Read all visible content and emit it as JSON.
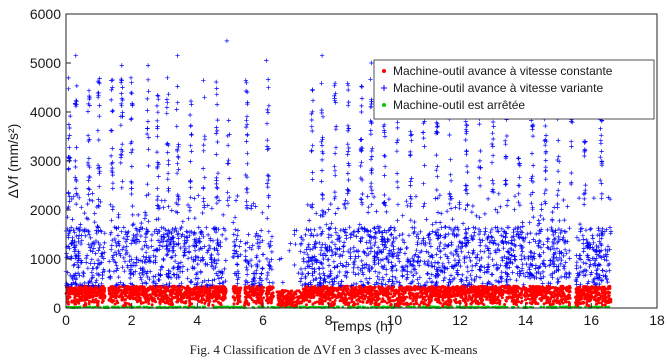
{
  "figure": {
    "caption": "Fig. 4 Classification de ΔVf en 3 classes avec K-means"
  },
  "chart_data": {
    "type": "scatter",
    "xlabel": "Temps (h)",
    "ylabel": "ΔVf (mm/s²)",
    "xlim": [
      0,
      18
    ],
    "ylim": [
      0,
      6000
    ],
    "xticks": [
      0,
      2,
      4,
      6,
      8,
      10,
      12,
      14,
      16,
      18
    ],
    "yticks": [
      0,
      1000,
      2000,
      3000,
      4000,
      5000,
      6000
    ],
    "grid": false,
    "legend_position": "top-right",
    "x_data_range": [
      0,
      16.6
    ],
    "series": [
      {
        "name": "Machine-outil avance à vitesse constante",
        "color": "#ff0000",
        "marker": "dot",
        "value_range": [
          30,
          450
        ],
        "points_sample": [
          [
            0.5,
            300
          ],
          [
            2.0,
            400
          ],
          [
            4.0,
            200
          ],
          [
            6.3,
            250
          ],
          [
            6.9,
            150
          ],
          [
            9.0,
            420
          ],
          [
            12.0,
            350
          ],
          [
            15.0,
            300
          ],
          [
            16.5,
            420
          ]
        ]
      },
      {
        "name": "Machine-outil avance à vitesse variante",
        "color": "#0000ff",
        "marker": "plus",
        "value_range": [
          450,
          5450
        ],
        "points_sample": [
          [
            0.3,
            5150
          ],
          [
            1.7,
            4950
          ],
          [
            2.5,
            4950
          ],
          [
            3.4,
            5150
          ],
          [
            4.9,
            5450
          ],
          [
            6.1,
            5050
          ],
          [
            7.8,
            5150
          ],
          [
            9.3,
            5000
          ],
          [
            12.2,
            4800
          ],
          [
            15.4,
            4700
          ],
          [
            16.3,
            4700
          ]
        ]
      },
      {
        "name": "Machine-outil est arrêtée",
        "color": "#00cc00",
        "marker": "dot",
        "value_range": [
          0,
          30
        ],
        "points_sample": [
          [
            0,
            0
          ],
          [
            4,
            0
          ],
          [
            8,
            0
          ],
          [
            12,
            0
          ],
          [
            16.6,
            0
          ]
        ]
      }
    ]
  }
}
